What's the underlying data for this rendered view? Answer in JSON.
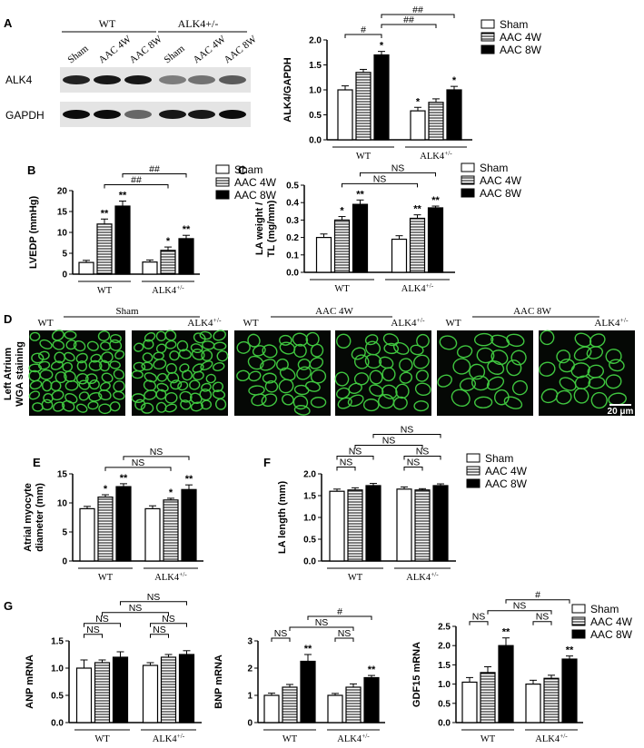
{
  "panel_letters": {
    "A": "A",
    "B": "B",
    "C": "C",
    "D": "D",
    "E": "E",
    "F": "F",
    "G": "G"
  },
  "legend": [
    {
      "label": "Sham",
      "pattern": "white"
    },
    {
      "label": "AAC 4W",
      "pattern": "stripe"
    },
    {
      "label": "AAC 8W",
      "pattern": "black"
    }
  ],
  "blot": {
    "groups": [
      "WT",
      "ALK4+/-"
    ],
    "lanes": [
      "Sham",
      "AAC 4W",
      "AAC 8W",
      "Sham",
      "AAC 4W",
      "AAC 8W"
    ],
    "rows": [
      "ALK4",
      "GAPDH"
    ],
    "alk4_intensity": [
      0.85,
      0.9,
      0.9,
      0.45,
      0.5,
      0.6
    ],
    "gapdh_intensity": [
      0.95,
      0.95,
      0.55,
      0.9,
      0.9,
      0.95
    ]
  },
  "wga": {
    "row_label": "Left Atrium",
    "row_label2": "WGA staining",
    "conditions": [
      "Sham",
      "AAC 4W",
      "AAC 8W"
    ],
    "genotypes": [
      "WT",
      "ALK4+/-"
    ],
    "scale_bar": "20 μm"
  },
  "chart_data": [
    {
      "id": "A",
      "type": "bar",
      "ylabel": "ALK4/GAPDH",
      "ylim": [
        0,
        2.0
      ],
      "yticks": [
        0.0,
        0.5,
        1.0,
        1.5,
        2.0
      ],
      "decimals": 1,
      "groups": [
        "WT",
        "ALK4+/-"
      ],
      "series": [
        {
          "name": "Sham",
          "values": [
            1.0,
            0.58
          ]
        },
        {
          "name": "AAC 4W",
          "values": [
            1.35,
            0.75
          ]
        },
        {
          "name": "AAC 8W",
          "values": [
            1.7,
            1.0
          ]
        }
      ],
      "errors": [
        [
          0.08,
          0.07
        ],
        [
          0.06,
          0.07
        ],
        [
          0.07,
          0.07
        ]
      ],
      "stars": [
        [
          "",
          "*"
        ],
        [
          "",
          ""
        ],
        [
          "*",
          "*"
        ]
      ],
      "brackets": [
        {
          "from": 0,
          "to": 2,
          "label": "#",
          "tier": 0
        },
        {
          "from": 2,
          "to": 4,
          "label": "##",
          "tier": 1
        },
        {
          "from": 2,
          "to": 5,
          "label": "##",
          "tier": 2
        }
      ]
    },
    {
      "id": "B",
      "type": "bar",
      "ylabel": "LVEDP (mmHg)",
      "ylim": [
        0,
        20
      ],
      "yticks": [
        0,
        5,
        10,
        15,
        20
      ],
      "decimals": 0,
      "groups": [
        "WT",
        "ALK4+/-"
      ],
      "series": [
        {
          "name": "Sham",
          "values": [
            2.8,
            2.9
          ]
        },
        {
          "name": "AAC 4W",
          "values": [
            12.0,
            5.7
          ]
        },
        {
          "name": "AAC 8W",
          "values": [
            16.3,
            8.5
          ]
        }
      ],
      "errors": [
        [
          0.5,
          0.5
        ],
        [
          1.2,
          0.8
        ],
        [
          1.2,
          0.8
        ]
      ],
      "stars": [
        [
          "",
          ""
        ],
        [
          "**",
          "*"
        ],
        [
          "**",
          "**"
        ]
      ],
      "brackets": [
        {
          "from": 1,
          "to": 4,
          "label": "##",
          "tier": 0
        },
        {
          "from": 2,
          "to": 5,
          "label": "##",
          "tier": 1
        }
      ]
    },
    {
      "id": "C",
      "type": "bar",
      "ylabel": "LA weight / TL (mg/mm)",
      "ylim": [
        0,
        0.5
      ],
      "yticks": [
        0.0,
        0.1,
        0.2,
        0.3,
        0.4,
        0.5
      ],
      "decimals": 1,
      "groups": [
        "WT",
        "ALK4+/-"
      ],
      "series": [
        {
          "name": "Sham",
          "values": [
            0.2,
            0.19
          ]
        },
        {
          "name": "AAC 4W",
          "values": [
            0.3,
            0.31
          ]
        },
        {
          "name": "AAC 8W",
          "values": [
            0.39,
            0.37
          ]
        }
      ],
      "errors": [
        [
          0.02,
          0.02
        ],
        [
          0.02,
          0.02
        ],
        [
          0.025,
          0.01
        ]
      ],
      "stars": [
        [
          "",
          ""
        ],
        [
          "*",
          "**"
        ],
        [
          "**",
          "**"
        ]
      ],
      "brackets": [
        {
          "from": 1,
          "to": 4,
          "label": "NS",
          "tier": 0
        },
        {
          "from": 2,
          "to": 5,
          "label": "NS",
          "tier": 1
        }
      ]
    },
    {
      "id": "E",
      "type": "bar",
      "ylabel": "Atrial myocyte diameter (mm)",
      "ylim": [
        0,
        15
      ],
      "yticks": [
        0,
        5,
        10,
        15
      ],
      "decimals": 0,
      "groups": [
        "WT",
        "ALK4+/-"
      ],
      "series": [
        {
          "name": "Sham",
          "values": [
            9.0,
            9.0
          ]
        },
        {
          "name": "AAC 4W",
          "values": [
            11.0,
            10.5
          ]
        },
        {
          "name": "AAC 8W",
          "values": [
            12.8,
            12.3
          ]
        }
      ],
      "errors": [
        [
          0.4,
          0.5
        ],
        [
          0.4,
          0.3
        ],
        [
          0.5,
          0.8
        ]
      ],
      "stars": [
        [
          "",
          ""
        ],
        [
          "*",
          "*"
        ],
        [
          "**",
          "**"
        ]
      ],
      "brackets": [
        {
          "from": 1,
          "to": 4,
          "label": "NS",
          "tier": 0
        },
        {
          "from": 2,
          "to": 5,
          "label": "NS",
          "tier": 1
        }
      ]
    },
    {
      "id": "F",
      "type": "bar",
      "ylabel": "LA length (mm)",
      "ylim": [
        0,
        2.0
      ],
      "yticks": [
        0.0,
        0.5,
        1.0,
        1.5,
        2.0
      ],
      "decimals": 1,
      "groups": [
        "WT",
        "ALK4+/-"
      ],
      "series": [
        {
          "name": "Sham",
          "values": [
            1.6,
            1.65
          ]
        },
        {
          "name": "AAC 4W",
          "values": [
            1.63,
            1.63
          ]
        },
        {
          "name": "AAC 8W",
          "values": [
            1.73,
            1.73
          ]
        }
      ],
      "errors": [
        [
          0.05,
          0.05
        ],
        [
          0.05,
          0.03
        ],
        [
          0.05,
          0.04
        ]
      ],
      "stars": [
        [
          "",
          ""
        ],
        [
          "",
          ""
        ],
        [
          "",
          ""
        ]
      ],
      "brackets": [
        {
          "from": 0,
          "to": 1,
          "label": "NS",
          "tier": 0
        },
        {
          "from": 3,
          "to": 4,
          "label": "NS",
          "tier": 0
        },
        {
          "from": 0,
          "to": 2,
          "label": "NS",
          "tier": 1
        },
        {
          "from": 3,
          "to": 5,
          "label": "NS",
          "tier": 1
        },
        {
          "from": 1,
          "to": 4,
          "label": "NS",
          "tier": 2
        },
        {
          "from": 2,
          "to": 5,
          "label": "NS",
          "tier": 3
        }
      ]
    },
    {
      "id": "G1",
      "type": "bar",
      "ylabel": "ANP mRNA",
      "ylim": [
        0,
        1.5
      ],
      "yticks": [
        0.0,
        0.5,
        1.0,
        1.5
      ],
      "decimals": 1,
      "groups": [
        "WT",
        "ALK4+/-"
      ],
      "series": [
        {
          "name": "Sham",
          "values": [
            1.0,
            1.05
          ]
        },
        {
          "name": "AAC 4W",
          "values": [
            1.1,
            1.2
          ]
        },
        {
          "name": "AAC 8W",
          "values": [
            1.2,
            1.25
          ]
        }
      ],
      "errors": [
        [
          0.15,
          0.05
        ],
        [
          0.05,
          0.05
        ],
        [
          0.1,
          0.07
        ]
      ],
      "stars": [
        [
          "",
          ""
        ],
        [
          "",
          ""
        ],
        [
          "",
          ""
        ]
      ],
      "brackets": [
        {
          "from": 0,
          "to": 1,
          "label": "NS",
          "tier": 0
        },
        {
          "from": 3,
          "to": 4,
          "label": "NS",
          "tier": 0
        },
        {
          "from": 0,
          "to": 2,
          "label": "NS",
          "tier": 1
        },
        {
          "from": 3,
          "to": 5,
          "label": "NS",
          "tier": 1
        },
        {
          "from": 1,
          "to": 4,
          "label": "NS",
          "tier": 2
        },
        {
          "from": 2,
          "to": 5,
          "label": "NS",
          "tier": 3
        }
      ]
    },
    {
      "id": "G2",
      "type": "bar",
      "ylabel": "BNP mRNA",
      "ylim": [
        0,
        3
      ],
      "yticks": [
        0,
        1,
        2,
        3
      ],
      "decimals": 0,
      "groups": [
        "WT",
        "ALK4+/-"
      ],
      "series": [
        {
          "name": "Sham",
          "values": [
            1.0,
            1.0
          ]
        },
        {
          "name": "AAC 4W",
          "values": [
            1.3,
            1.3
          ]
        },
        {
          "name": "AAC 8W",
          "values": [
            2.25,
            1.65
          ]
        }
      ],
      "errors": [
        [
          0.08,
          0.07
        ],
        [
          0.1,
          0.12
        ],
        [
          0.25,
          0.08
        ]
      ],
      "stars": [
        [
          "",
          ""
        ],
        [
          "",
          ""
        ],
        [
          "**",
          "**"
        ]
      ],
      "brackets": [
        {
          "from": 0,
          "to": 1,
          "label": "NS",
          "tier": 0
        },
        {
          "from": 3,
          "to": 4,
          "label": "NS",
          "tier": 0
        },
        {
          "from": 1,
          "to": 4,
          "label": "NS",
          "tier": 1
        },
        {
          "from": 2,
          "to": 5,
          "label": "#",
          "tier": 2
        }
      ]
    },
    {
      "id": "G3",
      "type": "bar",
      "ylabel": "GDF15 mRNA",
      "ylim": [
        0,
        2.5
      ],
      "yticks": [
        0.0,
        0.5,
        1.0,
        1.5,
        2.0,
        2.5
      ],
      "decimals": 1,
      "groups": [
        "WT",
        "ALK4+/-"
      ],
      "series": [
        {
          "name": "Sham",
          "values": [
            1.05,
            1.0
          ]
        },
        {
          "name": "AAC 4W",
          "values": [
            1.3,
            1.15
          ]
        },
        {
          "name": "AAC 8W",
          "values": [
            2.0,
            1.65
          ]
        }
      ],
      "errors": [
        [
          0.12,
          0.1
        ],
        [
          0.15,
          0.08
        ],
        [
          0.2,
          0.08
        ]
      ],
      "stars": [
        [
          "",
          ""
        ],
        [
          "",
          ""
        ],
        [
          "**",
          "**"
        ]
      ],
      "brackets": [
        {
          "from": 0,
          "to": 1,
          "label": "NS",
          "tier": 0
        },
        {
          "from": 3,
          "to": 4,
          "label": "NS",
          "tier": 0
        },
        {
          "from": 1,
          "to": 4,
          "label": "NS",
          "tier": 1
        },
        {
          "from": 2,
          "to": 5,
          "label": "#",
          "tier": 2
        }
      ]
    }
  ]
}
